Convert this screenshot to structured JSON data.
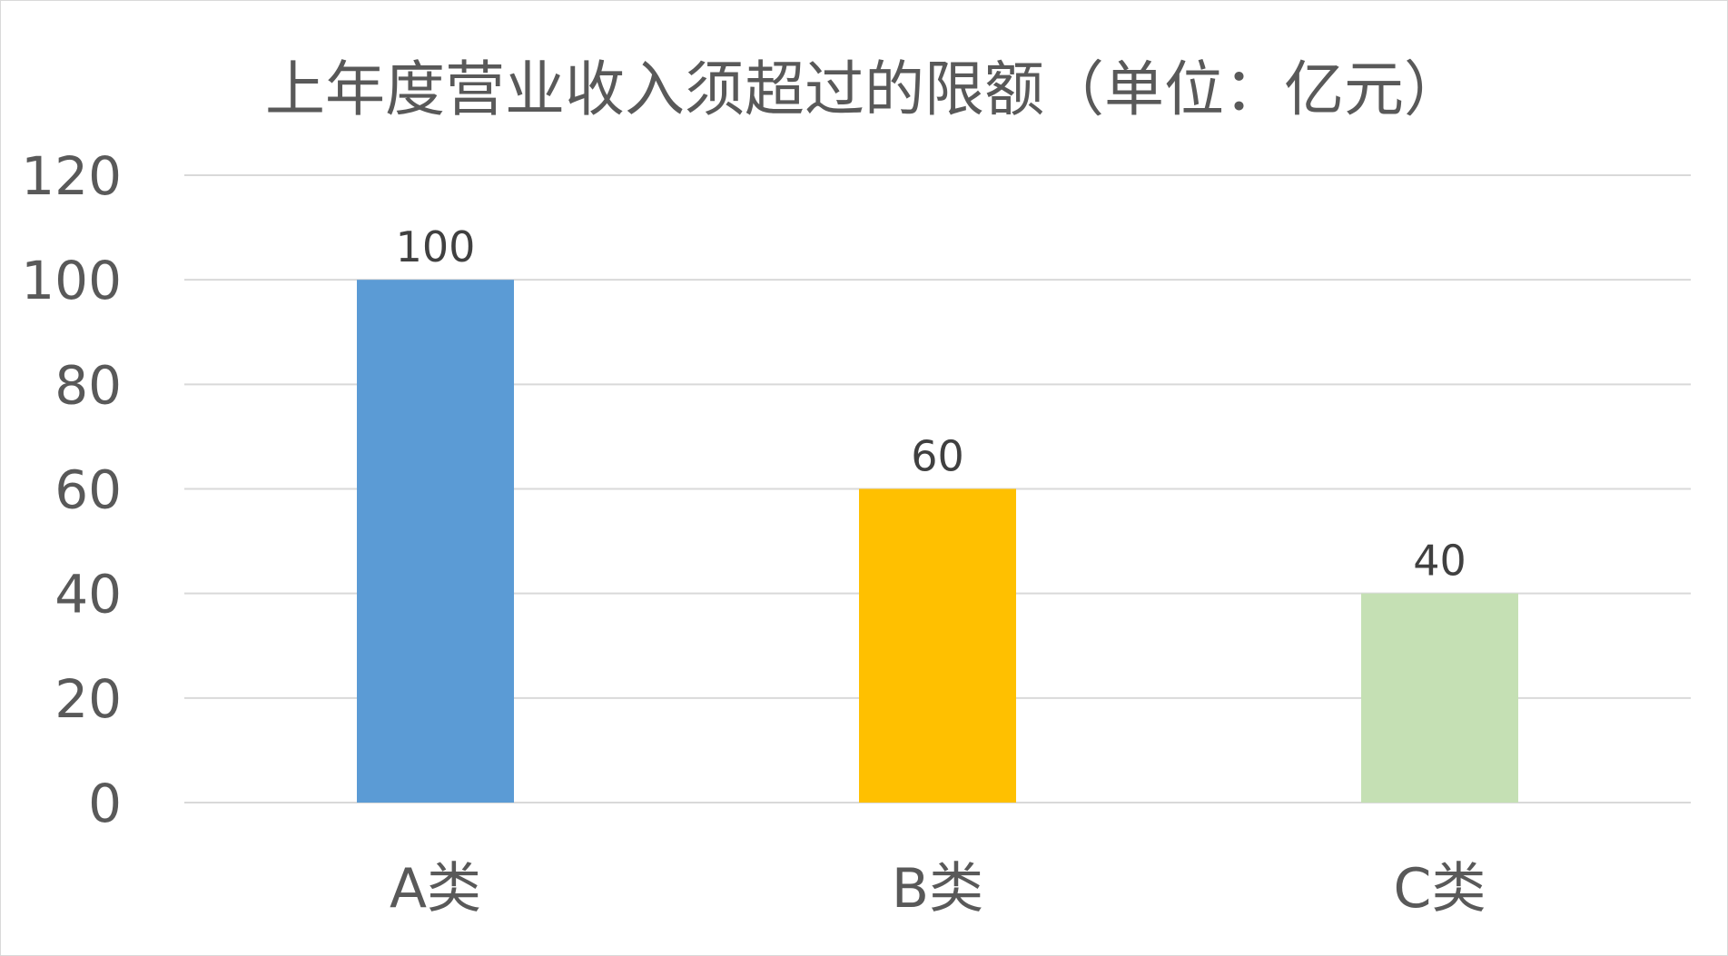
{
  "chart_data": {
    "type": "bar",
    "title": "上年度营业收入须超过的限额（单位：亿元）",
    "xlabel": "",
    "ylabel": "",
    "categories": [
      "A类",
      "B类",
      "C类"
    ],
    "values": [
      100,
      60,
      40
    ],
    "data_labels": [
      "100",
      "60",
      "40"
    ],
    "ylim": [
      0,
      120
    ],
    "yticks": [
      0,
      20,
      40,
      60,
      80,
      100,
      120
    ],
    "ytick_labels": [
      "0",
      "20",
      "40",
      "60",
      "80",
      "100",
      "120"
    ],
    "grid": true,
    "legend": "none",
    "colors": [
      "#5b9bd5",
      "#ffc000",
      "#c5e0b4"
    ],
    "gridline_color": "#d9d9d9",
    "text_color": "#595959"
  }
}
